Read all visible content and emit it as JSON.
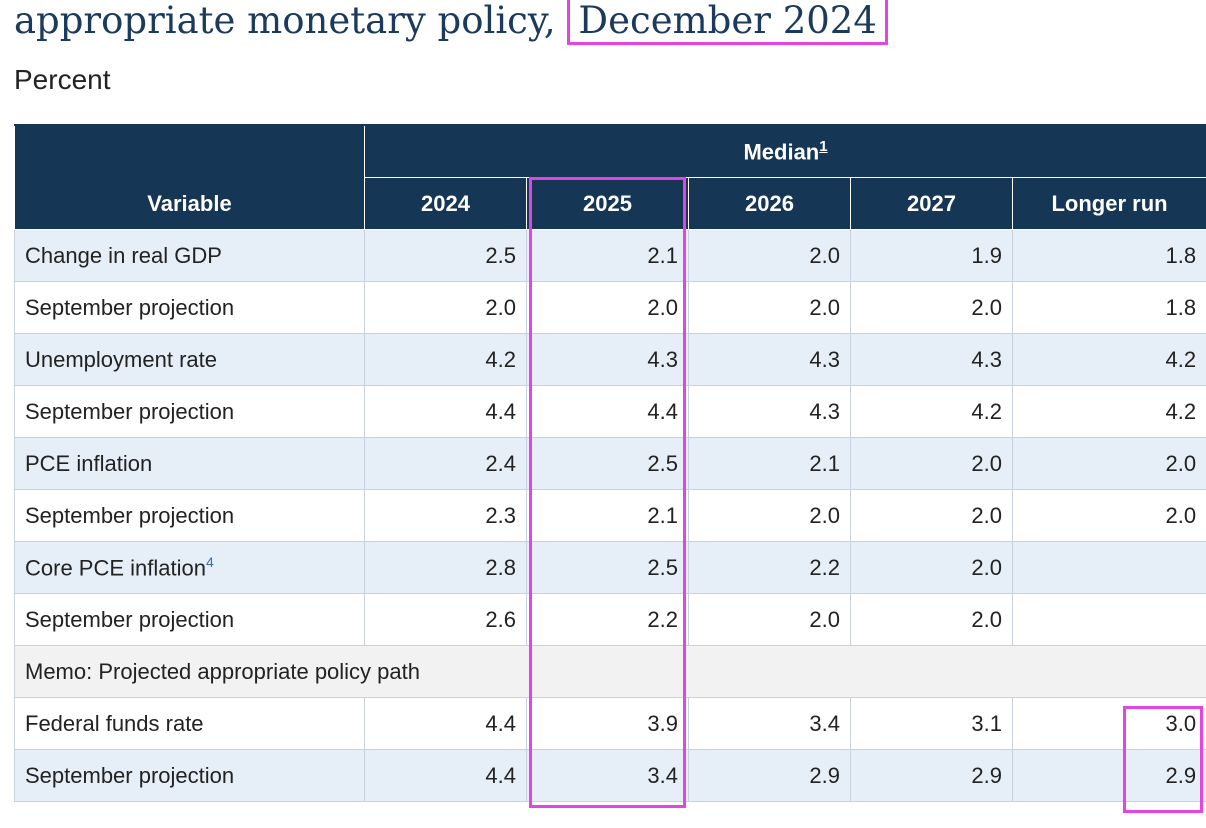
{
  "header": {
    "title_prefix": "appropriate monetary policy,",
    "title_highlight": "December 2024",
    "subtitle": "Percent"
  },
  "table": {
    "variable_header": "Variable",
    "group_header": "Median",
    "group_footnote": "1",
    "years": [
      "2024",
      "2025",
      "2026",
      "2027",
      "Longer run"
    ],
    "rows": [
      {
        "label": "Change in real GDP",
        "values": [
          "2.5",
          "2.1",
          "2.0",
          "1.9",
          "1.8"
        ]
      },
      {
        "label": "September projection",
        "values": [
          "2.0",
          "2.0",
          "2.0",
          "2.0",
          "1.8"
        ]
      },
      {
        "label": "Unemployment rate",
        "values": [
          "4.2",
          "4.3",
          "4.3",
          "4.3",
          "4.2"
        ]
      },
      {
        "label": "September projection",
        "values": [
          "4.4",
          "4.4",
          "4.3",
          "4.2",
          "4.2"
        ]
      },
      {
        "label": "PCE inflation",
        "values": [
          "2.4",
          "2.5",
          "2.1",
          "2.0",
          "2.0"
        ]
      },
      {
        "label": "September projection",
        "values": [
          "2.3",
          "2.1",
          "2.0",
          "2.0",
          "2.0"
        ]
      },
      {
        "label": "Core PCE inflation",
        "footnote": "4",
        "values": [
          "2.8",
          "2.5",
          "2.2",
          "2.0",
          ""
        ]
      },
      {
        "label": "September projection",
        "values": [
          "2.6",
          "2.2",
          "2.0",
          "2.0",
          ""
        ]
      },
      {
        "label": "Memo: Projected appropriate policy path"
      },
      {
        "label": "Federal funds rate",
        "values": [
          "4.4",
          "3.9",
          "3.4",
          "3.1",
          "3.0"
        ]
      },
      {
        "label": "September projection",
        "values": [
          "4.4",
          "3.4",
          "2.9",
          "2.9",
          "2.9"
        ]
      }
    ]
  },
  "colors": {
    "header_bg": "#163655",
    "row_shade": "#e6eff8",
    "highlight": "#e544e5"
  }
}
